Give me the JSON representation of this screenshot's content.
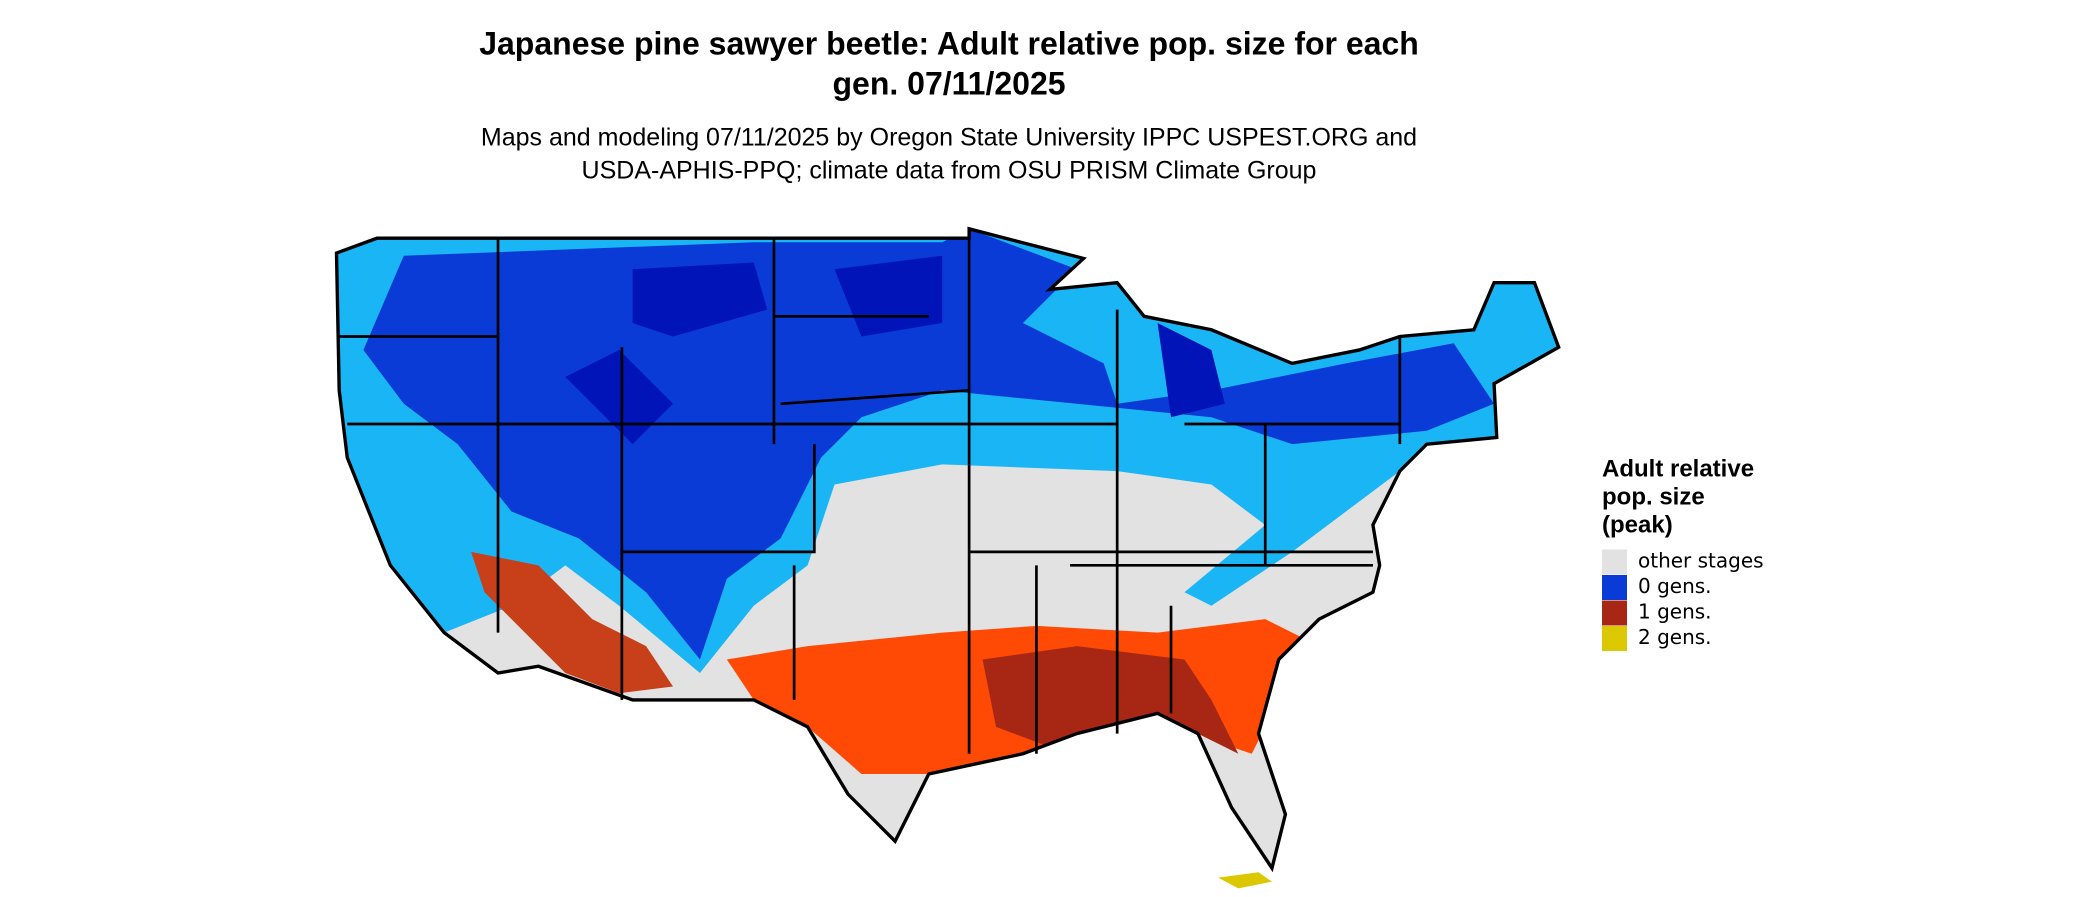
{
  "title_lines": [
    "Japanese pine sawyer beetle: Adult relative pop. size for each",
    "gen. 07/11/2025"
  ],
  "subtitle_lines": [
    "Maps and modeling 07/11/2025 by Oregon State University IPPC USPEST.ORG and",
    "USDA-APHIS-PPQ; climate data from OSU PRISM Climate Group"
  ],
  "legend": {
    "title_lines": [
      "Adult relative",
      "pop. size",
      "(peak)"
    ],
    "items": [
      {
        "label": "other stages",
        "color": "#e2e2e2"
      },
      {
        "label": "0 gens.",
        "color": "#0a3bd6"
      },
      {
        "label": "1 gens.",
        "color": "#a82714"
      },
      {
        "label": "2 gens.",
        "color": "#dcc800"
      }
    ]
  }
}
